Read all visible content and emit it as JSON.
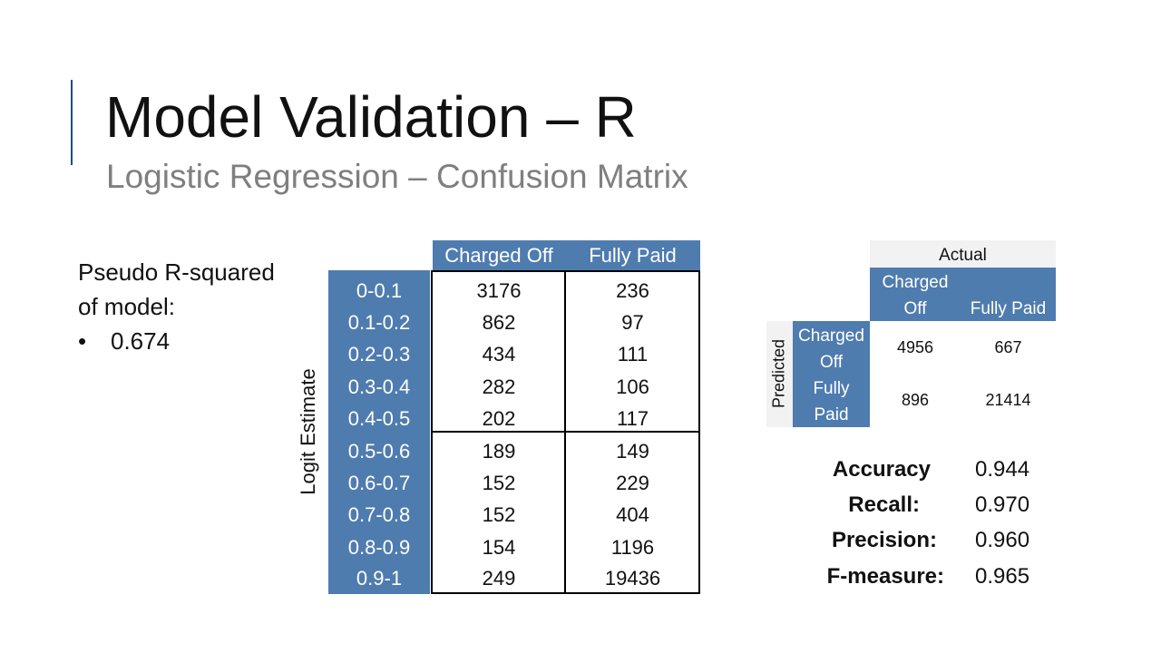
{
  "slide": {
    "title": "Model Validation – R",
    "subtitle": "Logistic Regression – Confusion Matrix"
  },
  "pseudo_r": {
    "line1": "Pseudo R-squared",
    "line2": "of model:",
    "bullet": "•",
    "value": "0.674"
  },
  "logit_table": {
    "axis_label": "Logit Estimate",
    "columns": [
      "Charged Off",
      "Fully Paid"
    ],
    "rows": [
      {
        "label": "0-0.1",
        "charged_off": "3176",
        "fully_paid": "236"
      },
      {
        "label": "0.1-0.2",
        "charged_off": "862",
        "fully_paid": "97"
      },
      {
        "label": "0.2-0.3",
        "charged_off": "434",
        "fully_paid": "111"
      },
      {
        "label": "0.3-0.4",
        "charged_off": "282",
        "fully_paid": "106"
      },
      {
        "label": "0.4-0.5",
        "charged_off": "202",
        "fully_paid": "117"
      },
      {
        "label": "0.5-0.6",
        "charged_off": "189",
        "fully_paid": "149"
      },
      {
        "label": "0.6-0.7",
        "charged_off": "152",
        "fully_paid": "229"
      },
      {
        "label": "0.7-0.8",
        "charged_off": "152",
        "fully_paid": "404"
      },
      {
        "label": "0.8-0.9",
        "charged_off": "154",
        "fully_paid": "1196"
      },
      {
        "label": "0.9-1",
        "charged_off": "249",
        "fully_paid": "19436"
      }
    ]
  },
  "confusion_matrix": {
    "actual_label": "Actual",
    "predicted_label": "Predicted",
    "col_charged_off": [
      "Charged",
      "Off"
    ],
    "col_fully_paid": "Fully Paid",
    "row_charged_off": [
      "Charged",
      "Off"
    ],
    "row_fully_paid": [
      "Fully",
      "Paid"
    ],
    "values": {
      "co_co": "4956",
      "co_fp": "667",
      "fp_co": "896",
      "fp_fp": "21414"
    }
  },
  "metrics": [
    {
      "name": "Accuracy",
      "value": "0.944"
    },
    {
      "name": "Recall:",
      "value": "0.970"
    },
    {
      "name": "Precision:",
      "value": "0.960"
    },
    {
      "name": "F-measure:",
      "value": "0.965"
    }
  ],
  "colors": {
    "accent": "#1f4e79",
    "header_blue": "#4f7caf",
    "subtitle_gray": "#7f7f7f",
    "light_gray": "#f2f2f2"
  }
}
